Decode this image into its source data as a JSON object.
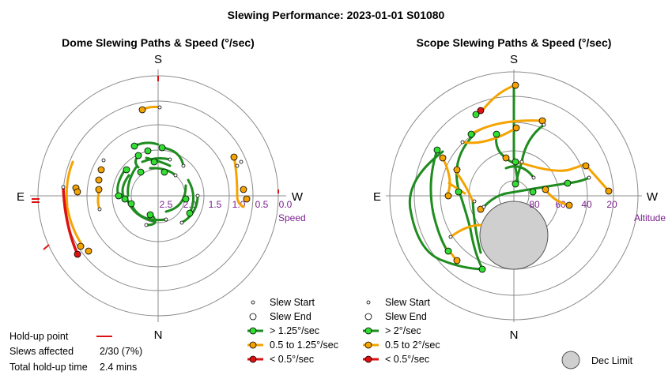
{
  "title": "Slewing Performance: 2023-01-01 S01080",
  "colors": {
    "ring": "#8c8c8c",
    "axis": "#8c8c8c",
    "fast": "#1f8c1f",
    "fast_dot": "#33dd33",
    "mid": "#f5a300",
    "mid_dot": "#f5a300",
    "slow": "#dd1111",
    "dec_limit": "#cfcfcf",
    "speed_label": "#7a1f8c"
  },
  "dome": {
    "title": "Dome Slewing Paths & Speed (°/sec)",
    "compass": {
      "n": "N",
      "s": "S",
      "e": "E",
      "w": "W"
    },
    "axis_label": "Speed",
    "ticks": [
      "2.5",
      "2.0",
      "1.5",
      "1.0",
      "0.5",
      "0.0"
    ],
    "legend": {
      "slew_start": "Slew Start",
      "slew_end": "Slew End",
      "fast": "> 1.25°/sec",
      "mid": "0.5 to 1.25°/sec",
      "slow": "< 0.5°/sec"
    },
    "holdup": {
      "label": "Hold-up point",
      "slews_label": "Slews affected",
      "slews_value": "2/30 (7%)",
      "time_label": "Total hold-up time",
      "time_value": "2.4 mins"
    }
  },
  "scope": {
    "title": "Scope Slewing Paths & Speed (°/sec)",
    "compass": {
      "n": "N",
      "s": "S",
      "e": "E",
      "w": "W"
    },
    "axis_label": "Altitude",
    "ticks": [
      "80",
      "60",
      "40",
      "20"
    ],
    "legend": {
      "slew_start": "Slew Start",
      "slew_end": "Slew End",
      "fast": "> 2°/sec",
      "mid": "0.5 to 2°/sec",
      "slow": "< 0.5°/sec"
    },
    "dec_limit_label": "Dec Limit"
  },
  "chart_data": [
    {
      "type": "scatter",
      "title": "Dome Slewing Paths & Speed (°/sec)",
      "radial_axis": "Speed",
      "radial_ticks": [
        2.5,
        2.0,
        1.5,
        1.0,
        0.5,
        0.0
      ],
      "radial_range": [
        3.0,
        0.0
      ],
      "speed_classes": [
        "> 1.25°/sec",
        "0.5 to 1.25°/sec",
        "< 0.5°/sec"
      ],
      "slews_affected": "2/30 (7%)",
      "total_holdup_time_mins": 2.4
    },
    {
      "type": "scatter",
      "title": "Scope Slewing Paths & Speed (°/sec)",
      "radial_axis": "Altitude",
      "radial_ticks": [
        80,
        60,
        40,
        20
      ],
      "radial_range": [
        90,
        0
      ],
      "speed_classes": [
        "> 2°/sec",
        "0.5 to 2°/sec",
        "< 0.5°/sec"
      ]
    }
  ]
}
